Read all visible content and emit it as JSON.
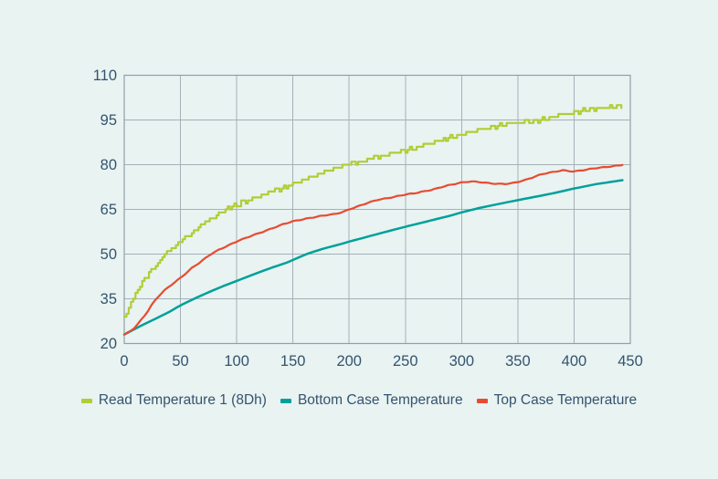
{
  "page": {
    "background_color": "#e8f3f2",
    "text_color": "#35536e"
  },
  "chart_data": {
    "type": "line",
    "title": "",
    "xlabel": "",
    "ylabel": "",
    "xlim": [
      0,
      450
    ],
    "ylim": [
      20,
      110
    ],
    "x_ticks": [
      0,
      50,
      100,
      150,
      200,
      250,
      300,
      350,
      400,
      450
    ],
    "y_ticks": [
      20,
      35,
      50,
      65,
      80,
      95,
      110
    ],
    "grid": true,
    "grid_color": "#a6b0b8",
    "border_color": "#939ea8",
    "legend_position": "bottom",
    "series": [
      {
        "name": "Read Temperature 1 (8Dh)",
        "color": "#b1cd35",
        "style": "staircase",
        "points": [
          [
            0,
            28.5
          ],
          [
            5,
            33.0
          ],
          [
            10,
            36.8
          ],
          [
            15,
            39.8
          ],
          [
            20,
            42.5
          ],
          [
            25,
            45.3
          ],
          [
            30,
            47.0
          ],
          [
            35,
            49.5
          ],
          [
            40,
            51.2
          ],
          [
            45,
            52.9
          ],
          [
            50,
            54.4
          ],
          [
            55,
            55.6
          ],
          [
            60,
            57.0
          ],
          [
            65,
            58.6
          ],
          [
            70,
            60.3
          ],
          [
            75,
            61.4
          ],
          [
            80,
            62.6
          ],
          [
            85,
            63.9
          ],
          [
            90,
            65.0
          ],
          [
            95,
            65.8
          ],
          [
            100,
            66.6
          ],
          [
            110,
            68.0
          ],
          [
            120,
            69.4
          ],
          [
            130,
            70.7
          ],
          [
            140,
            72.1
          ],
          [
            150,
            73.5
          ],
          [
            160,
            75.0
          ],
          [
            170,
            76.4
          ],
          [
            180,
            77.7
          ],
          [
            190,
            79.0
          ],
          [
            200,
            80.1
          ],
          [
            210,
            81.1
          ],
          [
            220,
            82.1
          ],
          [
            230,
            83.1
          ],
          [
            240,
            84.0
          ],
          [
            250,
            84.8
          ],
          [
            260,
            85.7
          ],
          [
            270,
            86.9
          ],
          [
            280,
            87.9
          ],
          [
            290,
            89.1
          ],
          [
            300,
            90.3
          ],
          [
            310,
            91.2
          ],
          [
            320,
            92.0
          ],
          [
            330,
            92.7
          ],
          [
            340,
            93.6
          ],
          [
            350,
            94.3
          ],
          [
            360,
            94.7
          ],
          [
            370,
            95.0
          ],
          [
            380,
            96.0
          ],
          [
            390,
            96.9
          ],
          [
            400,
            97.5
          ],
          [
            410,
            98.2
          ],
          [
            420,
            98.8
          ],
          [
            430,
            99.4
          ],
          [
            437,
            99.7
          ],
          [
            443,
            99.8
          ]
        ]
      },
      {
        "name": "Bottom Case Temperature",
        "color": "#00a09a",
        "style": "smooth",
        "points": [
          [
            0,
            23.0
          ],
          [
            10,
            25.0
          ],
          [
            20,
            26.9
          ],
          [
            30,
            28.7
          ],
          [
            40,
            30.6
          ],
          [
            50,
            32.8
          ],
          [
            62,
            35.0
          ],
          [
            75,
            37.2
          ],
          [
            89,
            39.4
          ],
          [
            100,
            41.0
          ],
          [
            115,
            43.2
          ],
          [
            130,
            45.3
          ],
          [
            145,
            47.2
          ],
          [
            162,
            50.0
          ],
          [
            175,
            51.6
          ],
          [
            190,
            53.1
          ],
          [
            202,
            54.4
          ],
          [
            215,
            55.7
          ],
          [
            230,
            57.2
          ],
          [
            245,
            58.7
          ],
          [
            260,
            60.1
          ],
          [
            275,
            61.5
          ],
          [
            290,
            62.9
          ],
          [
            302,
            64.2
          ],
          [
            315,
            65.4
          ],
          [
            330,
            66.6
          ],
          [
            350,
            68.1
          ],
          [
            365,
            69.2
          ],
          [
            380,
            70.3
          ],
          [
            400,
            72.0
          ],
          [
            420,
            73.5
          ],
          [
            443,
            74.8
          ]
        ]
      },
      {
        "name": "Top Case Temperature",
        "color": "#e84b31",
        "style": "wiggly",
        "points": [
          [
            0,
            23.0
          ],
          [
            5,
            24.0
          ],
          [
            10,
            25.6
          ],
          [
            15,
            27.9
          ],
          [
            20,
            30.3
          ],
          [
            25,
            33.3
          ],
          [
            30,
            35.6
          ],
          [
            35,
            37.6
          ],
          [
            41,
            39.4
          ],
          [
            45,
            40.6
          ],
          [
            50,
            42.0
          ],
          [
            55,
            43.6
          ],
          [
            60,
            45.3
          ],
          [
            65,
            46.6
          ],
          [
            70,
            48.0
          ],
          [
            77,
            50.0
          ],
          [
            85,
            51.6
          ],
          [
            92,
            52.8
          ],
          [
            101,
            54.4
          ],
          [
            108,
            55.4
          ],
          [
            115,
            56.4
          ],
          [
            122,
            57.3
          ],
          [
            130,
            58.4
          ],
          [
            141,
            60.0
          ],
          [
            150,
            61.0
          ],
          [
            158,
            61.6
          ],
          [
            165,
            62.1
          ],
          [
            172,
            62.6
          ],
          [
            180,
            63.1
          ],
          [
            187,
            63.4
          ],
          [
            195,
            64.2
          ],
          [
            200,
            65.0
          ],
          [
            207,
            65.9
          ],
          [
            215,
            67.0
          ],
          [
            225,
            68.2
          ],
          [
            232,
            68.6
          ],
          [
            240,
            69.2
          ],
          [
            250,
            70.0
          ],
          [
            258,
            70.4
          ],
          [
            266,
            71.0
          ],
          [
            275,
            71.7
          ],
          [
            283,
            72.6
          ],
          [
            292,
            73.4
          ],
          [
            300,
            74.0
          ],
          [
            308,
            74.4
          ],
          [
            315,
            74.2
          ],
          [
            322,
            73.9
          ],
          [
            330,
            73.6
          ],
          [
            338,
            73.5
          ],
          [
            345,
            73.8
          ],
          [
            350,
            74.2
          ],
          [
            357,
            74.9
          ],
          [
            365,
            76.0
          ],
          [
            372,
            76.9
          ],
          [
            378,
            77.3
          ],
          [
            385,
            77.8
          ],
          [
            390,
            78.1
          ],
          [
            395,
            77.9
          ],
          [
            400,
            77.7
          ],
          [
            405,
            78.0
          ],
          [
            412,
            78.4
          ],
          [
            420,
            78.9
          ],
          [
            428,
            79.2
          ],
          [
            435,
            79.5
          ],
          [
            443,
            79.9
          ]
        ]
      }
    ]
  }
}
